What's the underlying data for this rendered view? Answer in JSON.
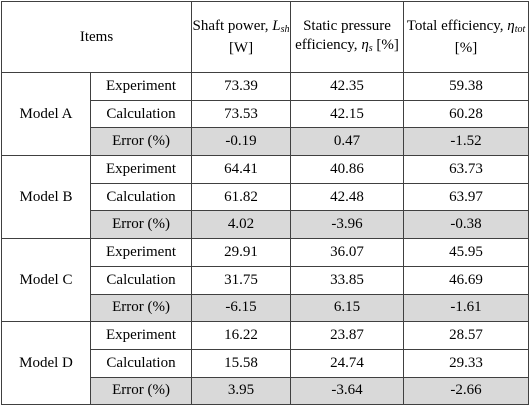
{
  "table": {
    "header": {
      "items": "Items",
      "columns": [
        {
          "text": "Shaft power,",
          "symbol": "L",
          "sub": "sh",
          "unit": "[W]"
        },
        {
          "text": "Static pressure efficiency,",
          "symbol": "η",
          "sub": "s",
          "unit": "[%]"
        },
        {
          "text": "Total efficiency,",
          "symbol": "η",
          "sub": "tot",
          "unit": "[%]"
        }
      ]
    },
    "groups": [
      {
        "name": "Model A",
        "rows": [
          {
            "label": "Experiment",
            "values": [
              73.39,
              42.35,
              59.38
            ]
          },
          {
            "label": "Calculation",
            "values": [
              73.53,
              42.15,
              60.28
            ]
          },
          {
            "label": "Error (%)",
            "values": [
              -0.19,
              0.47,
              -1.52
            ]
          }
        ]
      },
      {
        "name": "Model B",
        "rows": [
          {
            "label": "Experiment",
            "values": [
              64.41,
              40.86,
              63.73
            ]
          },
          {
            "label": "Calculation",
            "values": [
              61.82,
              42.48,
              63.97
            ]
          },
          {
            "label": "Error (%)",
            "values": [
              4.02,
              -3.96,
              -0.38
            ]
          }
        ]
      },
      {
        "name": "Model C",
        "rows": [
          {
            "label": "Experiment",
            "values": [
              29.91,
              36.07,
              45.95
            ]
          },
          {
            "label": "Calculation",
            "values": [
              31.75,
              33.85,
              46.69
            ]
          },
          {
            "label": "Error (%)",
            "values": [
              -6.15,
              6.15,
              -1.61
            ]
          }
        ]
      },
      {
        "name": "Model D",
        "rows": [
          {
            "label": "Experiment",
            "values": [
              16.22,
              23.87,
              28.57
            ]
          },
          {
            "label": "Calculation",
            "values": [
              15.58,
              24.74,
              29.33
            ]
          },
          {
            "label": "Error (%)",
            "values": [
              3.95,
              -3.64,
              -2.66
            ]
          }
        ]
      }
    ]
  }
}
